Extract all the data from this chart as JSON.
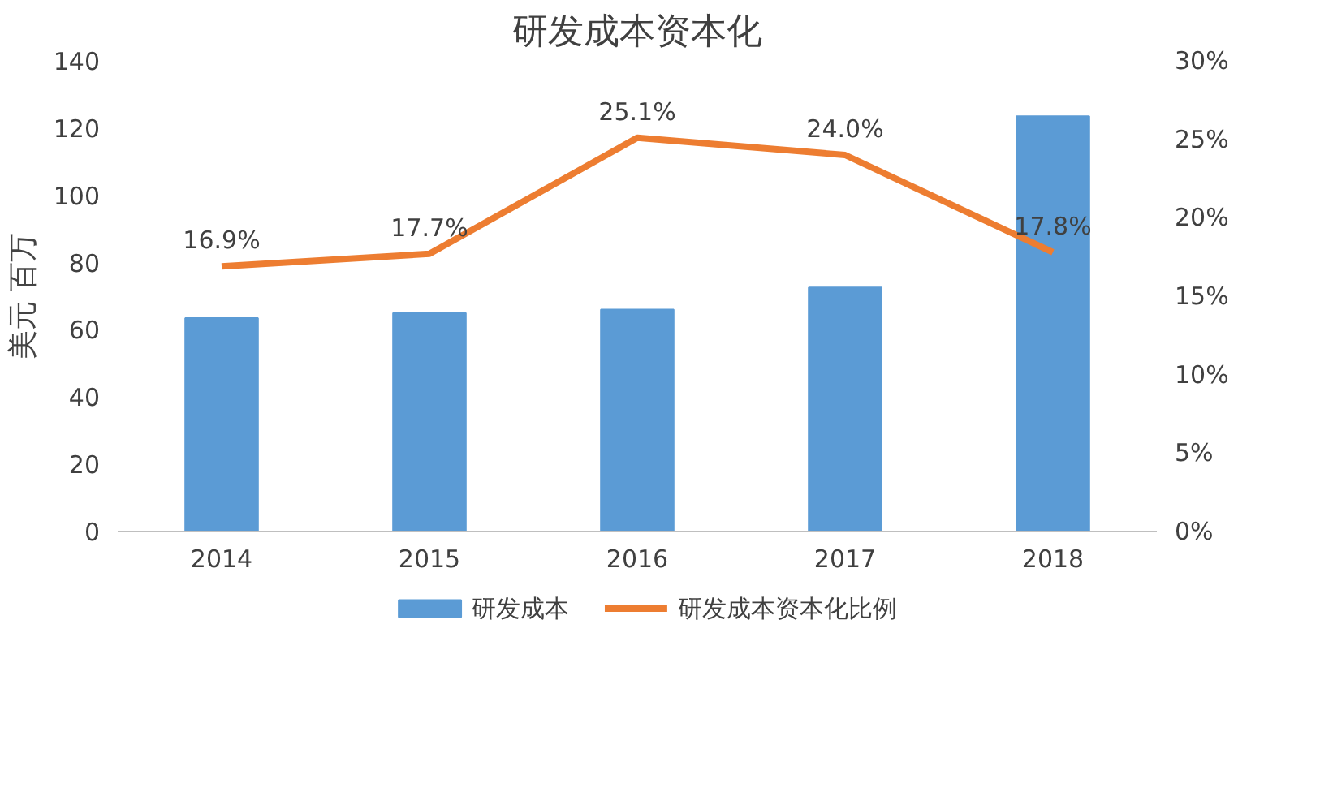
{
  "chart_data": {
    "type": "bar",
    "title": "研发成本资本化",
    "ylabel": "美元 百万",
    "categories": [
      "2014",
      "2015",
      "2016",
      "2017",
      "2018"
    ],
    "series": [
      {
        "name": "研发成本",
        "type": "bar",
        "color": "#5b9bd5",
        "values": [
          63.5,
          65,
          66,
          72.6,
          123.5
        ]
      },
      {
        "name": "研发成本资本化比例",
        "type": "line",
        "axis": "y2",
        "color": "#ed7d31",
        "values": [
          16.9,
          17.7,
          25.1,
          24.0,
          17.8
        ],
        "value_labels": [
          "16.9%",
          "17.7%",
          "25.1%",
          "24.0%",
          "17.8%"
        ]
      }
    ],
    "ylim": [
      0,
      140
    ],
    "yticks": [
      0,
      20,
      40,
      60,
      80,
      100,
      120,
      140
    ],
    "y2lim": [
      0,
      30
    ],
    "y2ticks": [
      {
        "value": 0,
        "label": "0%"
      },
      {
        "value": 5,
        "label": "5%"
      },
      {
        "value": 10,
        "label": "10%"
      },
      {
        "value": 15,
        "label": "15%"
      },
      {
        "value": 20,
        "label": "20%"
      },
      {
        "value": 25,
        "label": "25%"
      },
      {
        "value": 30,
        "label": "30%"
      }
    ],
    "grid": false,
    "legend": "bottom",
    "marker": "none",
    "line_style": "solid"
  }
}
